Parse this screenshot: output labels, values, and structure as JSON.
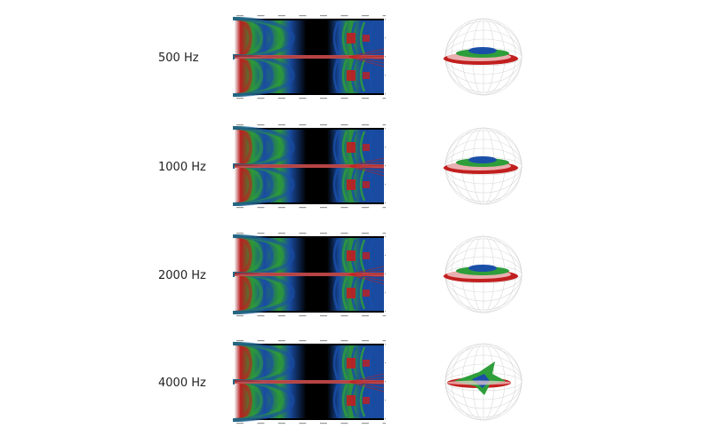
{
  "rows": [
    {
      "label": "500 Hz",
      "balloon": "flat-disc"
    },
    {
      "label": "1000 Hz",
      "balloon": "flat-disc"
    },
    {
      "label": "2000 Hz",
      "balloon": "flat-disc"
    },
    {
      "label": "4000 Hz",
      "balloon": "lobed"
    }
  ],
  "heatmap": {
    "colors": {
      "background": "#000000",
      "level_low": "#1a4fa8",
      "level_mid": "#2e9e3a",
      "level_high": "#c21f1f",
      "level_peak": "#ffffff"
    }
  },
  "balloon": {
    "colors": {
      "sphere_grid": "#d8d8d8",
      "red": "#c21f1f",
      "green": "#2e9e3a",
      "blue": "#1a4fa8"
    }
  }
}
